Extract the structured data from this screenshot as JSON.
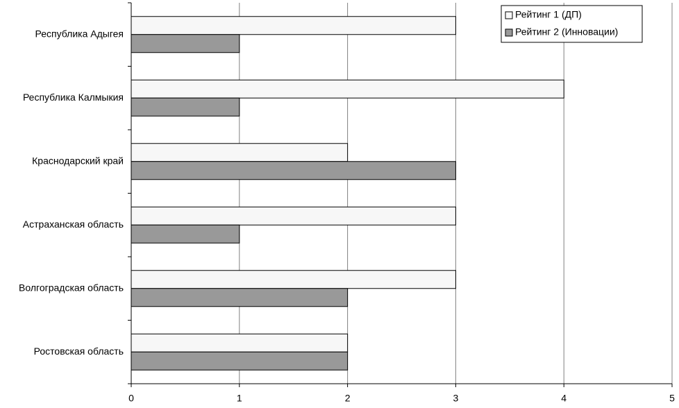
{
  "chart_data": {
    "type": "bar",
    "orientation": "horizontal",
    "categories": [
      "Республика Адыгея",
      "Республика Калмыкия",
      "Краснодарский край",
      "Астраханская область",
      "Волгоградская область",
      "Ростовская область"
    ],
    "series": [
      {
        "name": "Рейтинг 1 (ДП)",
        "color": "#f7f7f7",
        "values": [
          3,
          4,
          2,
          3,
          3,
          2
        ]
      },
      {
        "name": "Рейтинг 2 (Инновации)",
        "color": "#999999",
        "values": [
          1,
          1,
          3,
          1,
          2,
          2
        ]
      }
    ],
    "xlim": [
      0,
      5
    ],
    "xticks": [
      0,
      1,
      2,
      3,
      4,
      5
    ],
    "grid": true,
    "legend": "upper right"
  }
}
